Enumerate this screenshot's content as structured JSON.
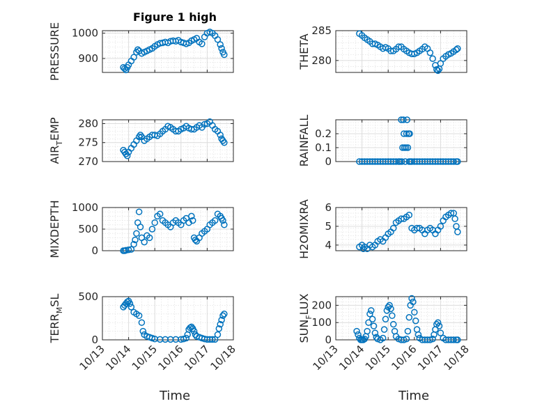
{
  "figure_title": "Figure 1 high",
  "marker_color": "#0072bd",
  "x_tick_labels": [
    "10/13",
    "10/14",
    "10/15",
    "10/16",
    "10/17",
    "10/18"
  ],
  "x_label": "Time",
  "chart_data": [
    {
      "type": "scatter",
      "name_panel": "pressure",
      "ylabel_main": "PRESSURE",
      "ylabel_sub": "",
      "ylabel_tail": "",
      "ylim": [
        845,
        1010
      ],
      "yticks": [
        900,
        1000
      ],
      "ytick_labels": [
        "900",
        "1000"
      ],
      "xlim": [
        0,
        5
      ],
      "xticks": [
        0,
        1,
        2,
        3,
        4,
        5
      ],
      "x": [
        0.8,
        0.85,
        0.9,
        0.95,
        1.0,
        1.1,
        1.2,
        1.3,
        1.35,
        1.4,
        1.5,
        1.6,
        1.7,
        1.8,
        1.9,
        2.0,
        2.1,
        2.2,
        2.3,
        2.4,
        2.5,
        2.6,
        2.7,
        2.8,
        2.9,
        3.0,
        3.1,
        3.2,
        3.3,
        3.4,
        3.5,
        3.6,
        3.7,
        3.8,
        3.9,
        4.0,
        4.1,
        4.2,
        4.3,
        4.4,
        4.5,
        4.55,
        4.6,
        4.65
      ],
      "y": [
        865,
        860,
        855,
        865,
        875,
        890,
        905,
        925,
        935,
        930,
        920,
        925,
        930,
        935,
        940,
        948,
        955,
        960,
        962,
        965,
        962,
        968,
        970,
        968,
        972,
        965,
        962,
        958,
        962,
        970,
        975,
        980,
        965,
        958,
        985,
        1000,
        1005,
        1000,
        990,
        975,
        955,
        940,
        925,
        915
      ]
    },
    {
      "type": "scatter",
      "name_panel": "theta",
      "ylabel_main": "THETA",
      "ylabel_sub": "",
      "ylabel_tail": "",
      "ylim": [
        278,
        285
      ],
      "yticks": [
        280,
        285
      ],
      "ytick_labels": [
        "280",
        "285"
      ],
      "xlim": [
        0,
        5
      ],
      "xticks": [
        0,
        1,
        2,
        3,
        4,
        5
      ],
      "x": [
        0.9,
        1.0,
        1.1,
        1.2,
        1.3,
        1.4,
        1.5,
        1.6,
        1.7,
        1.8,
        1.9,
        2.0,
        2.1,
        2.2,
        2.3,
        2.4,
        2.5,
        2.6,
        2.7,
        2.8,
        2.9,
        3.0,
        3.1,
        3.2,
        3.3,
        3.4,
        3.5,
        3.6,
        3.7,
        3.8,
        3.85,
        3.9,
        3.95,
        4.0,
        4.1,
        4.2,
        4.3,
        4.4,
        4.5,
        4.6,
        4.65
      ],
      "y": [
        284.5,
        284.2,
        283.8,
        283.5,
        283.2,
        282.8,
        282.8,
        282.6,
        282.3,
        282.0,
        282.2,
        282.0,
        281.6,
        281.6,
        281.9,
        282.3,
        282.3,
        281.9,
        281.6,
        281.3,
        281.1,
        281.1,
        281.3,
        281.6,
        281.9,
        282.3,
        282.0,
        281.3,
        280.3,
        279.2,
        278.5,
        278.3,
        278.6,
        279.5,
        280.3,
        280.7,
        281.0,
        281.2,
        281.5,
        281.8,
        282.0
      ]
    },
    {
      "type": "scatter",
      "name_panel": "air_temp",
      "ylabel_main": "AIR",
      "ylabel_sub": "T",
      "ylabel_tail": "EMP",
      "ylim": [
        270,
        281
      ],
      "yticks": [
        270,
        275,
        280
      ],
      "ytick_labels": [
        "270",
        "275",
        "280"
      ],
      "xlim": [
        0,
        5
      ],
      "xticks": [
        0,
        1,
        2,
        3,
        4,
        5
      ],
      "x": [
        0.8,
        0.85,
        0.9,
        0.95,
        1.0,
        1.1,
        1.2,
        1.3,
        1.4,
        1.45,
        1.5,
        1.6,
        1.7,
        1.8,
        1.9,
        2.0,
        2.1,
        2.2,
        2.3,
        2.4,
        2.5,
        2.6,
        2.7,
        2.8,
        2.9,
        3.0,
        3.1,
        3.2,
        3.3,
        3.4,
        3.5,
        3.6,
        3.7,
        3.8,
        3.9,
        4.0,
        4.1,
        4.2,
        4.3,
        4.4,
        4.5,
        4.55,
        4.6,
        4.65
      ],
      "y": [
        273,
        272.5,
        272,
        271.5,
        272.5,
        273.5,
        274.5,
        275.5,
        276.5,
        277,
        276.5,
        275.5,
        276,
        276.5,
        277,
        277,
        276.8,
        277.3,
        278,
        278.5,
        279.3,
        279,
        278.5,
        278,
        278,
        278.5,
        278.8,
        279.3,
        278.8,
        278.5,
        278.5,
        279,
        279.5,
        279,
        279.8,
        280,
        280.5,
        279.5,
        278.5,
        278,
        277,
        276,
        275.5,
        275
      ]
    },
    {
      "type": "scatter",
      "name_panel": "rainfall",
      "ylabel_main": "RAINFALL",
      "ylabel_sub": "",
      "ylabel_tail": "",
      "ylim": [
        0,
        0.3
      ],
      "yticks": [
        0,
        0.1,
        0.2
      ],
      "ytick_labels": [
        "0",
        "0.1",
        "0.2"
      ],
      "xlim": [
        0,
        5
      ],
      "xticks": [
        0,
        1,
        2,
        3,
        4,
        5
      ],
      "x": [
        0.9,
        1.0,
        1.1,
        1.2,
        1.3,
        1.4,
        1.5,
        1.6,
        1.7,
        1.8,
        1.9,
        2.0,
        2.1,
        2.2,
        2.3,
        2.4,
        2.45,
        2.5,
        2.52,
        2.55,
        2.58,
        2.6,
        2.62,
        2.65,
        2.68,
        2.7,
        2.72,
        2.75,
        2.78,
        2.8,
        2.82,
        2.85,
        2.9,
        3.0,
        3.1,
        3.2,
        3.3,
        3.4,
        3.5,
        3.6,
        3.7,
        3.8,
        3.9,
        4.0,
        4.1,
        4.2,
        4.3,
        4.4,
        4.5,
        4.6,
        4.65
      ],
      "y": [
        0,
        0,
        0,
        0,
        0,
        0,
        0,
        0,
        0,
        0,
        0,
        0,
        0,
        0,
        0,
        0,
        0,
        0.3,
        0,
        0.1,
        0.3,
        0.2,
        0.1,
        0,
        0.1,
        0.2,
        0.3,
        0.1,
        0.2,
        0,
        0.2,
        0,
        0,
        0,
        0,
        0,
        0,
        0,
        0,
        0,
        0,
        0,
        0,
        0,
        0,
        0,
        0,
        0,
        0,
        0,
        0
      ]
    },
    {
      "type": "scatter",
      "name_panel": "mixdepth",
      "ylabel_main": "MIXDEPTH",
      "ylabel_sub": "",
      "ylabel_tail": "",
      "ylim": [
        0,
        1000
      ],
      "yticks": [
        0,
        500,
        1000
      ],
      "ytick_labels": [
        "0",
        "500",
        "1000"
      ],
      "xlim": [
        0,
        5
      ],
      "xticks": [
        0,
        1,
        2,
        3,
        4,
        5
      ],
      "x": [
        0.8,
        0.85,
        0.9,
        1.0,
        1.1,
        1.2,
        1.25,
        1.3,
        1.35,
        1.4,
        1.45,
        1.5,
        1.6,
        1.7,
        1.8,
        1.9,
        2.0,
        2.1,
        2.2,
        2.3,
        2.4,
        2.5,
        2.6,
        2.7,
        2.8,
        2.9,
        3.0,
        3.1,
        3.2,
        3.3,
        3.4,
        3.45,
        3.5,
        3.55,
        3.6,
        3.7,
        3.8,
        3.9,
        4.0,
        4.1,
        4.2,
        4.3,
        4.4,
        4.5,
        4.55,
        4.6,
        4.65
      ],
      "y": [
        0,
        0,
        10,
        20,
        30,
        150,
        250,
        400,
        650,
        900,
        550,
        300,
        200,
        350,
        300,
        500,
        650,
        800,
        850,
        700,
        650,
        600,
        550,
        650,
        700,
        650,
        600,
        700,
        750,
        650,
        800,
        700,
        300,
        250,
        220,
        300,
        400,
        450,
        500,
        600,
        650,
        700,
        850,
        800,
        750,
        700,
        600
      ]
    },
    {
      "type": "scatter",
      "name_panel": "h2omixra",
      "ylabel_main": "H2OMIXRA",
      "ylabel_sub": "",
      "ylabel_tail": "",
      "ylim": [
        3.7,
        6
      ],
      "yticks": [
        4,
        5,
        6
      ],
      "ytick_labels": [
        "4",
        "5",
        "6"
      ],
      "xlim": [
        0,
        5
      ],
      "xticks": [
        0,
        1,
        2,
        3,
        4,
        5
      ],
      "x": [
        0.9,
        1.0,
        1.05,
        1.1,
        1.2,
        1.3,
        1.4,
        1.5,
        1.6,
        1.7,
        1.8,
        1.9,
        2.0,
        2.1,
        2.2,
        2.3,
        2.4,
        2.5,
        2.6,
        2.7,
        2.8,
        2.9,
        3.0,
        3.1,
        3.2,
        3.3,
        3.4,
        3.5,
        3.6,
        3.7,
        3.8,
        3.9,
        4.0,
        4.1,
        4.2,
        4.3,
        4.4,
        4.5,
        4.55,
        4.6,
        4.65
      ],
      "y": [
        3.9,
        4.0,
        3.8,
        3.9,
        3.8,
        4.0,
        3.9,
        4.0,
        4.2,
        4.3,
        4.2,
        4.4,
        4.6,
        4.7,
        4.9,
        5.2,
        5.3,
        5.4,
        5.4,
        5.5,
        5.6,
        4.9,
        4.8,
        4.9,
        4.9,
        4.8,
        4.6,
        4.8,
        4.9,
        4.8,
        4.6,
        4.8,
        5.0,
        5.3,
        5.5,
        5.6,
        5.7,
        5.7,
        5.4,
        5.0,
        4.7
      ]
    },
    {
      "type": "scatter",
      "name_panel": "terr_msl",
      "ylabel_main": "TERR",
      "ylabel_sub": "M",
      "ylabel_tail": "SL",
      "ylim": [
        0,
        500
      ],
      "yticks": [
        0,
        500
      ],
      "ytick_labels": [
        "0",
        "500"
      ],
      "xlim": [
        0,
        5
      ],
      "xticks": [
        0,
        1,
        2,
        3,
        4,
        5
      ],
      "x": [
        0.8,
        0.85,
        0.9,
        0.95,
        1.0,
        1.05,
        1.1,
        1.2,
        1.3,
        1.4,
        1.5,
        1.55,
        1.6,
        1.7,
        1.8,
        1.9,
        2.0,
        2.2,
        2.4,
        2.6,
        2.8,
        3.0,
        3.1,
        3.2,
        3.25,
        3.3,
        3.35,
        3.4,
        3.45,
        3.5,
        3.55,
        3.6,
        3.7,
        3.8,
        3.9,
        4.0,
        4.1,
        4.2,
        4.3,
        4.4,
        4.45,
        4.5,
        4.55,
        4.6,
        4.65
      ],
      "y": [
        380,
        400,
        420,
        440,
        450,
        420,
        380,
        320,
        300,
        280,
        200,
        100,
        60,
        40,
        30,
        20,
        10,
        5,
        5,
        5,
        5,
        5,
        10,
        20,
        60,
        120,
        140,
        150,
        130,
        100,
        60,
        40,
        30,
        20,
        10,
        5,
        5,
        5,
        5,
        60,
        130,
        180,
        230,
        280,
        300
      ]
    },
    {
      "type": "scatter",
      "name_panel": "sun_flux",
      "ylabel_main": "SUN",
      "ylabel_sub": "F",
      "ylabel_tail": "LUX",
      "ylim": [
        0,
        250
      ],
      "yticks": [
        0,
        100,
        200
      ],
      "ytick_labels": [
        "0",
        "100",
        "200"
      ],
      "xlim": [
        0,
        5
      ],
      "xticks": [
        0,
        1,
        2,
        3,
        4,
        5
      ],
      "x": [
        0.8,
        0.85,
        0.9,
        0.95,
        1.0,
        1.05,
        1.1,
        1.15,
        1.2,
        1.25,
        1.3,
        1.35,
        1.4,
        1.45,
        1.5,
        1.55,
        1.6,
        1.7,
        1.8,
        1.85,
        1.9,
        1.95,
        2.0,
        2.05,
        2.1,
        2.15,
        2.2,
        2.25,
        2.3,
        2.4,
        2.5,
        2.6,
        2.7,
        2.75,
        2.8,
        2.85,
        2.9,
        2.95,
        3.0,
        3.05,
        3.1,
        3.15,
        3.2,
        3.3,
        3.4,
        3.5,
        3.6,
        3.7,
        3.75,
        3.8,
        3.85,
        3.9,
        3.95,
        4.0,
        4.1,
        4.2,
        4.3,
        4.4,
        4.5,
        4.6,
        4.65
      ],
      "y": [
        50,
        30,
        10,
        0,
        0,
        0,
        5,
        20,
        50,
        100,
        150,
        170,
        120,
        80,
        40,
        15,
        5,
        0,
        10,
        60,
        120,
        170,
        190,
        200,
        180,
        140,
        90,
        50,
        20,
        5,
        0,
        0,
        5,
        50,
        130,
        200,
        240,
        220,
        160,
        110,
        60,
        30,
        10,
        0,
        0,
        0,
        0,
        5,
        30,
        60,
        90,
        100,
        80,
        40,
        10,
        0,
        0,
        0,
        0,
        0,
        0
      ]
    }
  ]
}
